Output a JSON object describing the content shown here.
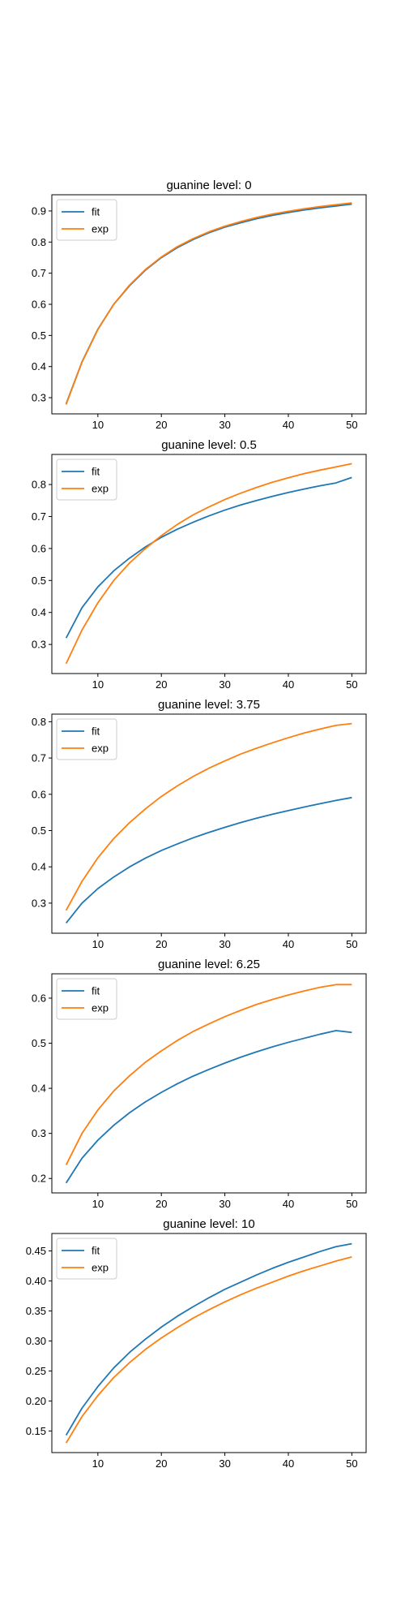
{
  "chart_data": [
    {
      "type": "line",
      "title": "guanine level: 0",
      "xlabel": "",
      "ylabel": "",
      "xlim": [
        2.75,
        52.25
      ],
      "ylim": [
        0.248,
        0.952
      ],
      "x_ticks": [
        10,
        20,
        30,
        40,
        50
      ],
      "y_ticks": [
        0.3,
        0.4,
        0.5,
        0.6,
        0.7,
        0.8,
        0.9
      ],
      "y_tick_labels": [
        "0.3",
        "0.4",
        "0.5",
        "0.6",
        "0.7",
        "0.8",
        "0.9"
      ],
      "legend": "top-left",
      "x": [
        5,
        7.5,
        10,
        12.5,
        15,
        17.5,
        20,
        22.5,
        25,
        27.5,
        30,
        32.5,
        35,
        37.5,
        40,
        42.5,
        45,
        47.5,
        50
      ],
      "series": [
        {
          "name": "fit",
          "color": "#1f77b4",
          "values": [
            0.28,
            0.415,
            0.52,
            0.6,
            0.66,
            0.71,
            0.75,
            0.782,
            0.808,
            0.83,
            0.848,
            0.862,
            0.875,
            0.886,
            0.895,
            0.903,
            0.91,
            0.916,
            0.922
          ]
        },
        {
          "name": "exp",
          "color": "#ff7f0e",
          "values": [
            0.278,
            0.414,
            0.519,
            0.6,
            0.662,
            0.712,
            0.752,
            0.785,
            0.811,
            0.833,
            0.851,
            0.866,
            0.879,
            0.89,
            0.899,
            0.907,
            0.914,
            0.92,
            0.926
          ]
        }
      ]
    },
    {
      "type": "line",
      "title": "guanine level: 0.5",
      "xlabel": "",
      "ylabel": "",
      "xlim": [
        2.75,
        52.25
      ],
      "ylim": [
        0.209,
        0.894
      ],
      "x_ticks": [
        10,
        20,
        30,
        40,
        50
      ],
      "y_ticks": [
        0.3,
        0.4,
        0.5,
        0.6,
        0.7,
        0.8
      ],
      "y_tick_labels": [
        "0.3",
        "0.4",
        "0.5",
        "0.6",
        "0.7",
        "0.8"
      ],
      "legend": "top-left",
      "x": [
        5,
        7.5,
        10,
        12.5,
        15,
        17.5,
        20,
        22.5,
        25,
        27.5,
        30,
        32.5,
        35,
        37.5,
        40,
        42.5,
        45,
        47.5,
        50
      ],
      "series": [
        {
          "name": "fit",
          "color": "#1f77b4",
          "values": [
            0.32,
            0.415,
            0.48,
            0.53,
            0.57,
            0.605,
            0.635,
            0.66,
            0.682,
            0.702,
            0.72,
            0.736,
            0.75,
            0.763,
            0.775,
            0.786,
            0.796,
            0.805,
            0.822
          ]
        },
        {
          "name": "exp",
          "color": "#ff7f0e",
          "values": [
            0.24,
            0.345,
            0.43,
            0.5,
            0.555,
            0.6,
            0.64,
            0.675,
            0.705,
            0.73,
            0.753,
            0.773,
            0.791,
            0.807,
            0.821,
            0.834,
            0.845,
            0.855,
            0.865
          ]
        }
      ]
    },
    {
      "type": "line",
      "title": "guanine level: 3.75",
      "xlabel": "",
      "ylabel": "",
      "xlim": [
        2.75,
        52.25
      ],
      "ylim": [
        0.217,
        0.821
      ],
      "x_ticks": [
        10,
        20,
        30,
        40,
        50
      ],
      "y_ticks": [
        0.3,
        0.4,
        0.5,
        0.6,
        0.7,
        0.8
      ],
      "y_tick_labels": [
        "0.3",
        "0.4",
        "0.5",
        "0.6",
        "0.7",
        "0.8"
      ],
      "legend": "top-left",
      "x": [
        5,
        7.5,
        10,
        12.5,
        15,
        17.5,
        20,
        22.5,
        25,
        27.5,
        30,
        32.5,
        35,
        37.5,
        40,
        42.5,
        45,
        47.5,
        50
      ],
      "series": [
        {
          "name": "fit",
          "color": "#1f77b4",
          "values": [
            0.245,
            0.3,
            0.34,
            0.372,
            0.4,
            0.424,
            0.445,
            0.463,
            0.48,
            0.495,
            0.509,
            0.522,
            0.534,
            0.545,
            0.555,
            0.565,
            0.574,
            0.583,
            0.591
          ]
        },
        {
          "name": "exp",
          "color": "#ff7f0e",
          "values": [
            0.28,
            0.36,
            0.425,
            0.478,
            0.522,
            0.56,
            0.594,
            0.623,
            0.649,
            0.672,
            0.692,
            0.711,
            0.727,
            0.742,
            0.756,
            0.769,
            0.78,
            0.79,
            0.795
          ]
        }
      ]
    },
    {
      "type": "line",
      "title": "guanine level: 6.25",
      "xlabel": "",
      "ylabel": "",
      "xlim": [
        2.75,
        52.25
      ],
      "ylim": [
        0.168,
        0.654
      ],
      "x_ticks": [
        10,
        20,
        30,
        40,
        50
      ],
      "y_ticks": [
        0.2,
        0.3,
        0.4,
        0.5,
        0.6
      ],
      "y_tick_labels": [
        "0.2",
        "0.3",
        "0.4",
        "0.5",
        "0.6"
      ],
      "legend": "top-left",
      "x": [
        5,
        7.5,
        10,
        12.5,
        15,
        17.5,
        20,
        22.5,
        25,
        27.5,
        30,
        32.5,
        35,
        37.5,
        40,
        42.5,
        45,
        47.5,
        50
      ],
      "series": [
        {
          "name": "fit",
          "color": "#1f77b4",
          "values": [
            0.19,
            0.245,
            0.285,
            0.318,
            0.346,
            0.37,
            0.391,
            0.41,
            0.427,
            0.442,
            0.456,
            0.469,
            0.481,
            0.492,
            0.502,
            0.511,
            0.52,
            0.528,
            0.524
          ]
        },
        {
          "name": "exp",
          "color": "#ff7f0e",
          "values": [
            0.23,
            0.3,
            0.352,
            0.394,
            0.428,
            0.458,
            0.483,
            0.506,
            0.526,
            0.543,
            0.559,
            0.573,
            0.586,
            0.597,
            0.607,
            0.616,
            0.624,
            0.63,
            0.63
          ]
        }
      ]
    },
    {
      "type": "line",
      "title": "guanine level: 10",
      "xlabel": "",
      "ylabel": "",
      "xlim": [
        2.75,
        52.25
      ],
      "ylim": [
        0.114,
        0.479
      ],
      "x_ticks": [
        10,
        20,
        30,
        40,
        50
      ],
      "y_ticks": [
        0.15,
        0.2,
        0.25,
        0.3,
        0.35,
        0.4,
        0.45
      ],
      "y_tick_labels": [
        "0.15",
        "0.20",
        "0.25",
        "0.30",
        "0.35",
        "0.40",
        "0.45"
      ],
      "legend": "top-left",
      "x": [
        5,
        7.5,
        10,
        12.5,
        15,
        17.5,
        20,
        22.5,
        25,
        27.5,
        30,
        32.5,
        35,
        37.5,
        40,
        42.5,
        45,
        47.5,
        50
      ],
      "series": [
        {
          "name": "fit",
          "color": "#1f77b4",
          "values": [
            0.143,
            0.188,
            0.224,
            0.255,
            0.281,
            0.303,
            0.323,
            0.341,
            0.357,
            0.372,
            0.386,
            0.398,
            0.41,
            0.421,
            0.431,
            0.44,
            0.449,
            0.457,
            0.462
          ]
        },
        {
          "name": "exp",
          "color": "#ff7f0e",
          "values": [
            0.13,
            0.174,
            0.209,
            0.239,
            0.264,
            0.286,
            0.305,
            0.322,
            0.338,
            0.352,
            0.365,
            0.377,
            0.388,
            0.398,
            0.408,
            0.417,
            0.425,
            0.433,
            0.44
          ]
        }
      ]
    }
  ]
}
